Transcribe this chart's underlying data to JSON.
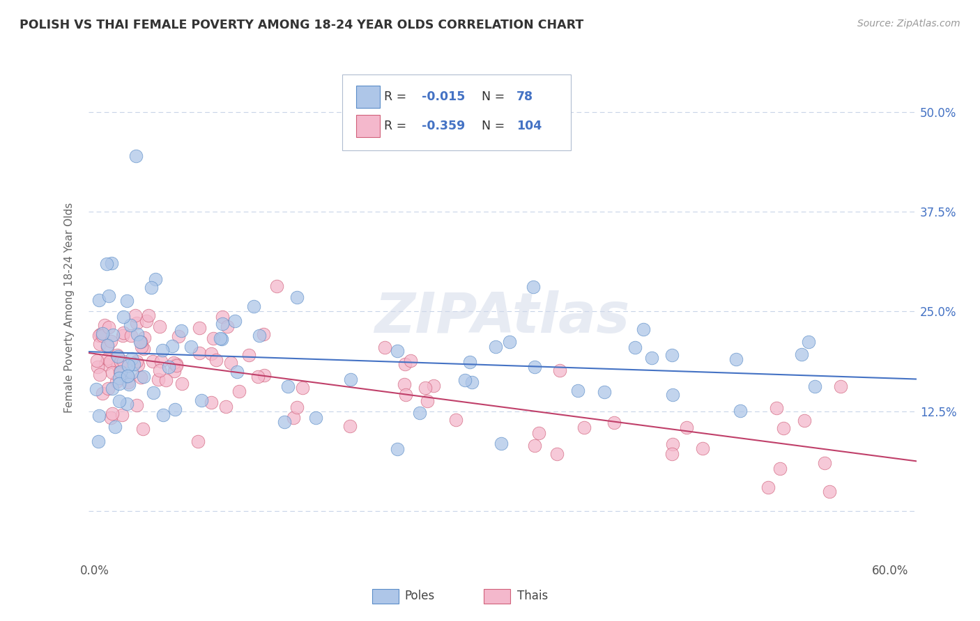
{
  "title": "POLISH VS THAI FEMALE POVERTY AMONG 18-24 YEAR OLDS CORRELATION CHART",
  "source": "Source: ZipAtlas.com",
  "ylabel": "Female Poverty Among 18-24 Year Olds",
  "xlim": [
    -0.005,
    0.62
  ],
  "ylim": [
    -0.06,
    0.57
  ],
  "xtick_vals": [
    0.0,
    0.1,
    0.2,
    0.3,
    0.4,
    0.5,
    0.6
  ],
  "xtick_labels": [
    "0.0%",
    "",
    "",
    "",
    "",
    "",
    "60.0%"
  ],
  "ytick_vals": [
    0.0,
    0.125,
    0.25,
    0.375,
    0.5
  ],
  "ytick_labels": [
    "",
    "12.5%",
    "25.0%",
    "37.5%",
    "50.0%"
  ],
  "poles_R": -0.015,
  "poles_N": 78,
  "thais_R": -0.359,
  "thais_N": 104,
  "poles_color": "#aec6e8",
  "thais_color": "#f4b8cc",
  "poles_edge_color": "#5b8dc8",
  "thais_edge_color": "#d0607a",
  "poles_line_color": "#4472c4",
  "thais_line_color": "#c0406a",
  "label_color": "#4472c4",
  "background_color": "#ffffff",
  "grid_color": "#c8d4e8",
  "watermark": "ZIPAtlas",
  "title_color": "#333333",
  "source_color": "#999999",
  "ylabel_color": "#666666"
}
